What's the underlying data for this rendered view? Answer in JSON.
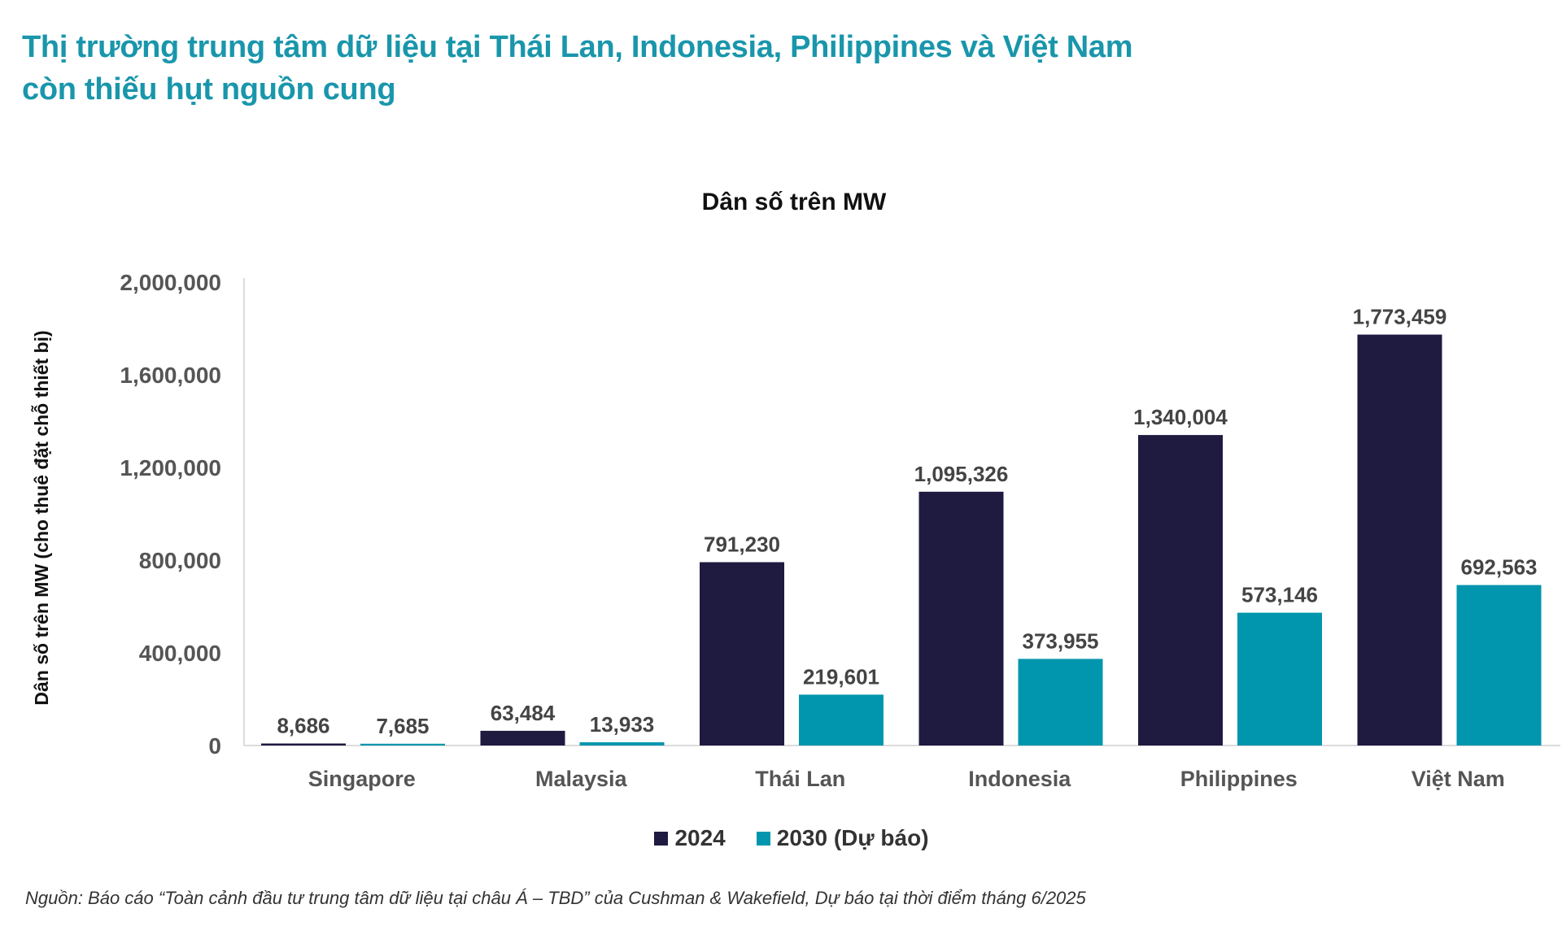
{
  "header": {
    "title_line1": "Thị trường trung tâm dữ liệu tại Thái Lan, Indonesia, Philippines và Việt Nam",
    "title_line2": "còn thiếu hụt nguồn cung"
  },
  "source": "Nguồn: Báo cáo “Toàn cảnh đầu tư trung tâm dữ liệu tại châu Á – TBD” của Cushman & Wakefield, Dự báo tại thời điểm tháng 6/2025",
  "chart_data": {
    "type": "bar",
    "title": "Dân số trên MW",
    "xlabel": "",
    "ylabel": "Dân số trên MW (cho thuê đặt chỗ thiết bị)",
    "ylim": [
      0,
      2000000
    ],
    "yticks": [
      0,
      400000,
      800000,
      1200000,
      1600000,
      2000000
    ],
    "ytick_labels": [
      "0",
      "400,000",
      "800,000",
      "1,200,000",
      "1,600,000",
      "2,000,000"
    ],
    "grid": false,
    "legend_position": "bottom",
    "categories": [
      "Singapore",
      "Malaysia",
      "Thái Lan",
      "Indonesia",
      "Philippines",
      "Việt Nam"
    ],
    "series": [
      {
        "name": "2024",
        "color": "#1f1a40",
        "values": [
          8686,
          63484,
          791230,
          1095326,
          1340004,
          1773459
        ],
        "labels": [
          "8,686",
          "63,484",
          "791,230",
          "1,095,326",
          "1,340,004",
          "1,773,459"
        ]
      },
      {
        "name": "2030 (Dự báo)",
        "color": "#0196ad",
        "values": [
          7685,
          13933,
          219601,
          373955,
          573146,
          692563
        ],
        "labels": [
          "7,685",
          "13,933",
          "219,601",
          "373,955",
          "573,146",
          "692,563"
        ]
      }
    ]
  }
}
